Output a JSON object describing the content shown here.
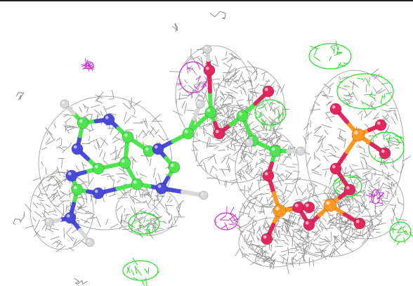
{
  "scene": {
    "background": "#ffffff",
    "frame_color": "#222222",
    "colors": {
      "density_mesh": "#8a8a8a",
      "positive_difference": "#22dd22",
      "negative_difference": "#cc33cc",
      "carbon": "#4ee64e",
      "nitrogen": "#4a4ad8",
      "oxygen": "#e0285f",
      "phosphorus": "#ff9922",
      "hydrogen": "#d8d8d8"
    }
  }
}
